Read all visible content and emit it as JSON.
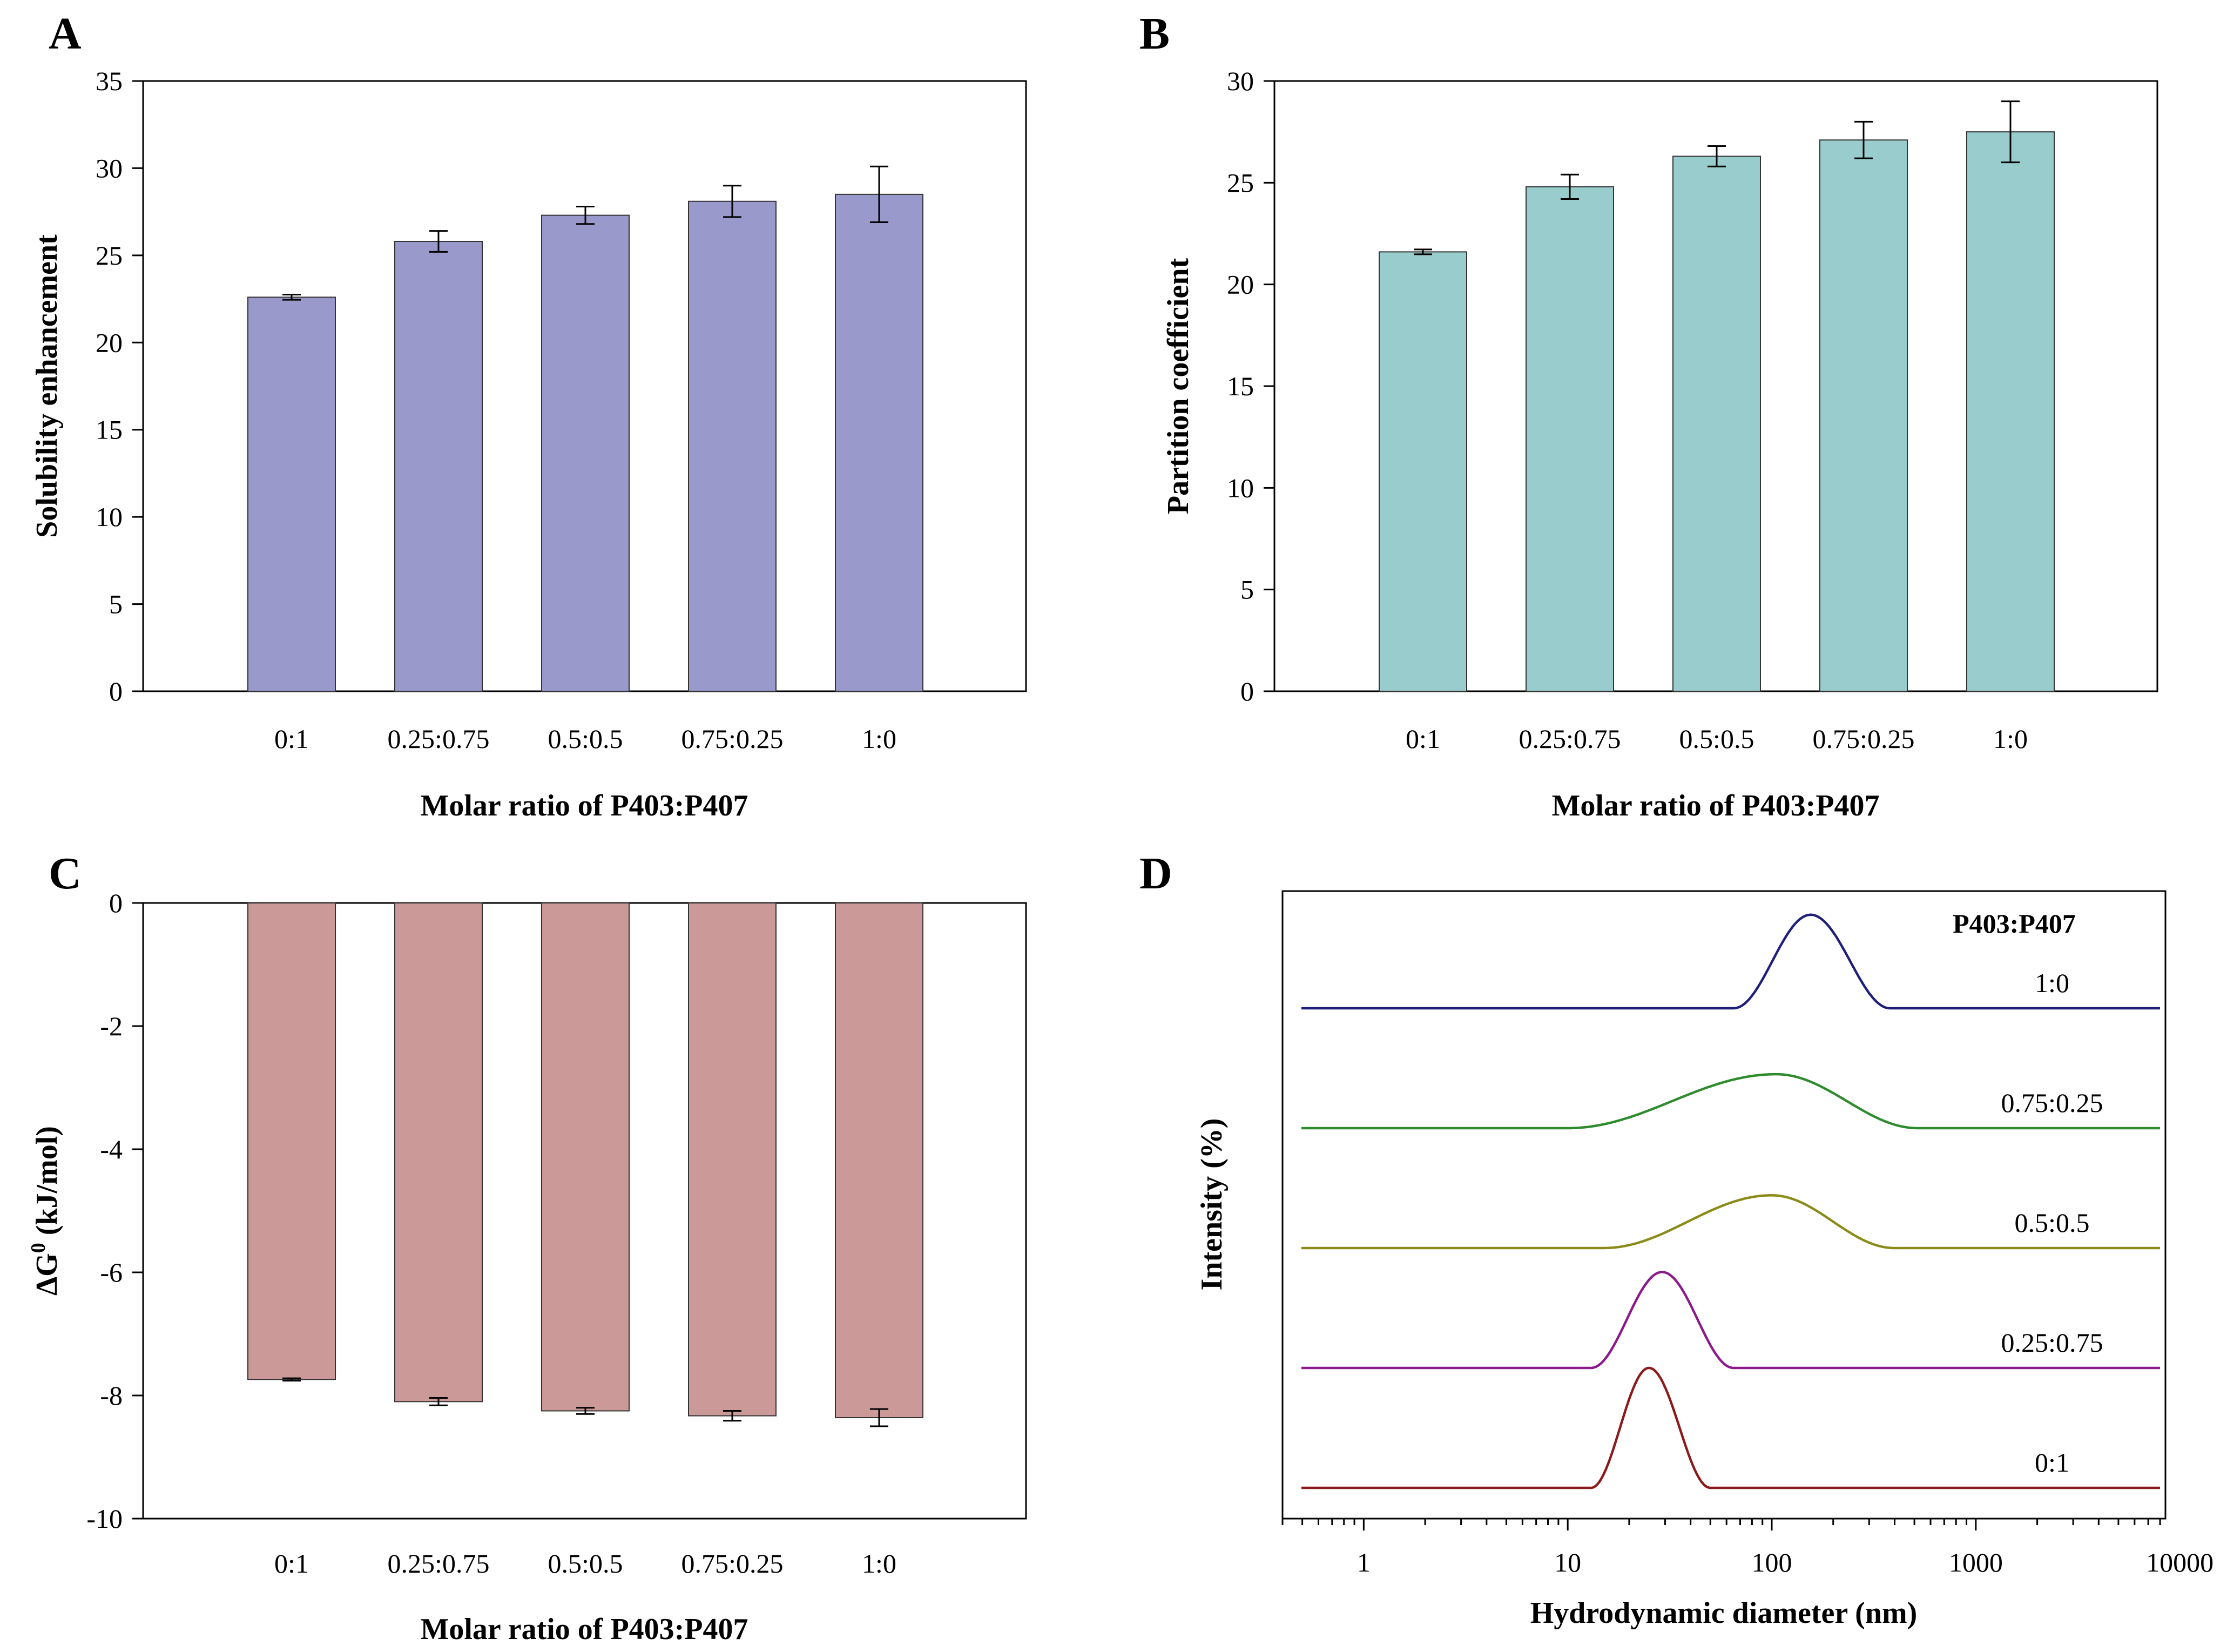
{
  "chart_data": [
    {
      "panel": "A",
      "type": "bar",
      "title": "",
      "categories": [
        "0:1",
        "0.25:0.75",
        "0.5:0.5",
        "0.75:0.25",
        "1:0"
      ],
      "values": [
        22.6,
        25.8,
        27.3,
        28.1,
        28.5
      ],
      "errors": [
        0.15,
        0.6,
        0.5,
        0.9,
        1.6
      ],
      "xlabel": "Molar ratio of P403:P407",
      "ylabel": "Solubility enhancement",
      "ylim": [
        0,
        35
      ],
      "yticks": [
        0,
        5,
        10,
        15,
        20,
        25,
        30,
        35
      ],
      "color": "#9999cc",
      "grid": false
    },
    {
      "panel": "B",
      "type": "bar",
      "title": "",
      "categories": [
        "0:1",
        "0.25:0.75",
        "0.5:0.5",
        "0.75:0.25",
        "1:0"
      ],
      "values": [
        21.6,
        24.8,
        26.3,
        27.1,
        27.5
      ],
      "errors": [
        0.12,
        0.6,
        0.5,
        0.9,
        1.5
      ],
      "xlabel": "Molar ratio of P403:P407",
      "ylabel": "Partition coefficient",
      "ylim": [
        0,
        30
      ],
      "yticks": [
        0,
        5,
        10,
        15,
        20,
        25,
        30
      ],
      "color": "#99cccc",
      "grid": false
    },
    {
      "panel": "C",
      "type": "bar",
      "title": "",
      "categories": [
        "0:1",
        "0.25:0.75",
        "0.5:0.5",
        "0.75:0.25",
        "1:0"
      ],
      "values": [
        -7.74,
        -8.1,
        -8.25,
        -8.33,
        -8.36
      ],
      "errors": [
        0.02,
        0.06,
        0.05,
        0.08,
        0.14
      ],
      "xlabel": "Molar ratio of P403:P407",
      "ylabel_prefix": "ΔG",
      "ylabel_sup": "0",
      "ylabel_suffix": " (kJ/mol)",
      "ylim": [
        -10,
        0
      ],
      "yticks": [
        0,
        -2,
        -4,
        -6,
        -8,
        -10
      ],
      "color": "#cc9999",
      "grid": false
    },
    {
      "panel": "D",
      "type": "line",
      "title": "",
      "xscale": "log",
      "xlim": [
        0.4,
        8500
      ],
      "xticks": [
        1,
        10,
        100,
        1000,
        10000
      ],
      "xtick_labels": [
        "1",
        "10",
        "100",
        "1000",
        "10000"
      ],
      "xlabel": "Hydrodynamic diameter (nm)",
      "ylabel": "Intensity (%)",
      "legend_title": "P403:P407",
      "legend_position": "top-right",
      "series": [
        {
          "name": "1:0",
          "color": "#1f1f7a",
          "baseline": 4,
          "peak_center": 155,
          "peak_height": 0.78,
          "support": [
            65,
            380
          ]
        },
        {
          "name": "0.75:0.25",
          "color": "#2e8b2e",
          "baseline": 3,
          "peak_center": 105,
          "peak_height": 0.45,
          "support": [
            10,
            520
          ]
        },
        {
          "name": "0.5:0.5",
          "color": "#8b8b1a",
          "baseline": 2,
          "peak_center": 100,
          "peak_height": 0.44,
          "support": [
            15,
            400
          ]
        },
        {
          "name": "0.25:0.75",
          "color": "#8b1a8b",
          "baseline": 1,
          "peak_center": 29,
          "peak_height": 0.8,
          "support": [
            13,
            65
          ]
        },
        {
          "name": "0:1",
          "color": "#8b1a1a",
          "baseline": 0,
          "peak_center": 25,
          "peak_height": 1.0,
          "support": [
            13,
            50
          ]
        }
      ]
    }
  ]
}
